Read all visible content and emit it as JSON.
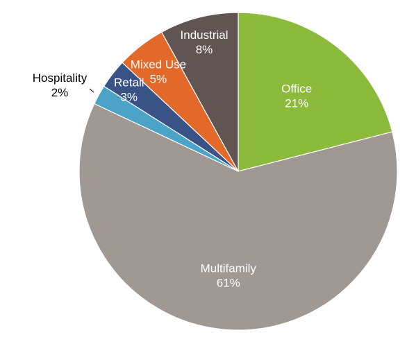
{
  "chart_data": {
    "type": "pie",
    "title": "",
    "slices": [
      {
        "label": "Office",
        "value": 21,
        "value_label": "21%",
        "color": "#8CBB3C",
        "label_color": "#ffffff"
      },
      {
        "label": "Multifamily",
        "value": 61,
        "value_label": "61%",
        "color": "#A09893",
        "label_color": "#ffffff"
      },
      {
        "label": "Hospitality",
        "value": 2,
        "value_label": "2%",
        "color": "#4BA3C8",
        "label_color": "#000000"
      },
      {
        "label": "Retail",
        "value": 3,
        "value_label": "3%",
        "color": "#3A5386",
        "label_color": "#ffffff"
      },
      {
        "label": "Mixed Use",
        "value": 5,
        "value_label": "5%",
        "color": "#E3692A",
        "label_color": "#ffffff"
      },
      {
        "label": "Industrial",
        "value": 8,
        "value_label": "8%",
        "color": "#605552",
        "label_color": "#ffffff"
      }
    ],
    "start": "12 o'clock",
    "direction": "clockwise",
    "legend": "none"
  }
}
